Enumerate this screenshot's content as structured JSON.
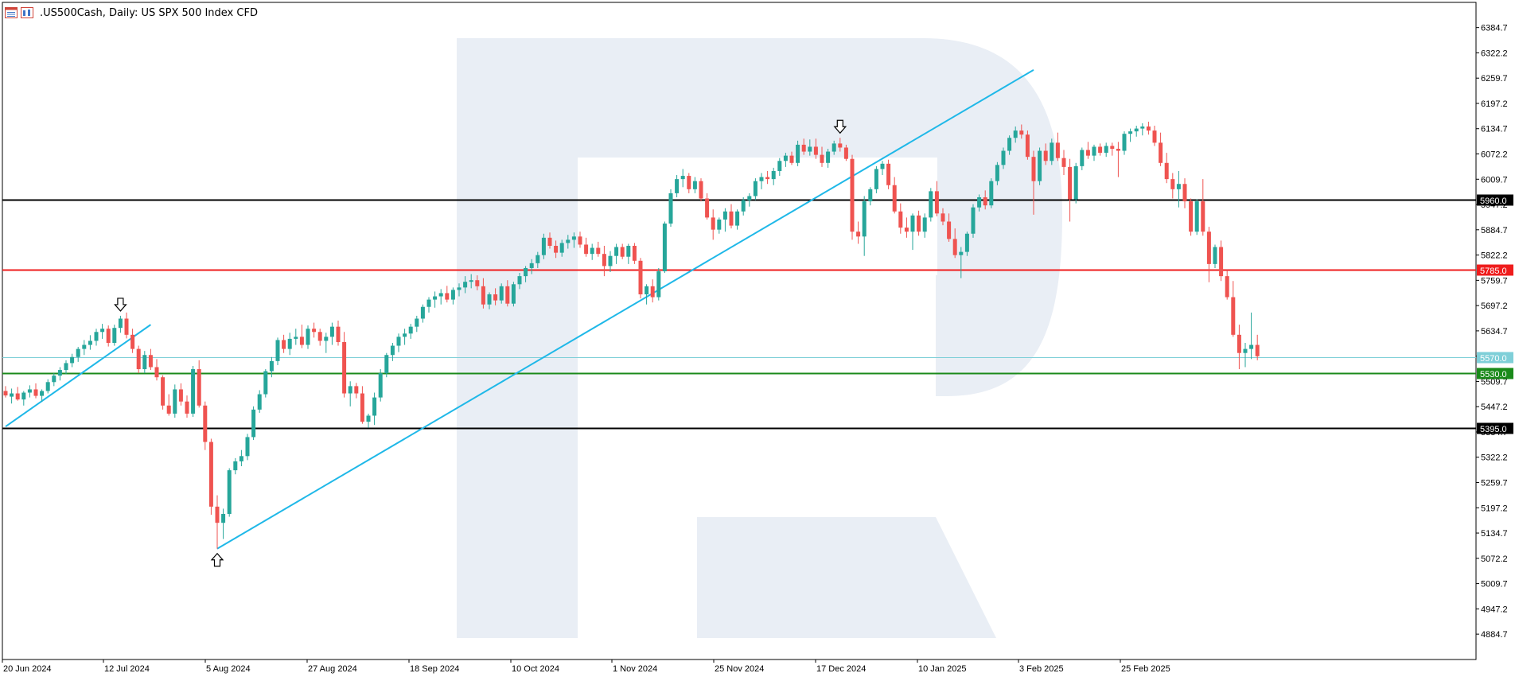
{
  "header": {
    "symbol": ".US500Cash",
    "timeframe": "Daily",
    "description": "US SPX 500 Index CFD",
    "title": ".US500Cash, Daily:  US SPX 500 Index CFD"
  },
  "colors": {
    "bull": "#26a69a",
    "bear": "#ef5350",
    "trendline": "#1fb8e8",
    "resistance_red": "#ef1c1c",
    "support_green": "#1a8a1a",
    "current_price": "#7fcfd8",
    "level_black": "#000000",
    "watermark": "#e9eef5"
  },
  "chart_data": {
    "type": "candlestick",
    "symbol": ".US500Cash",
    "timeframe": "Daily",
    "ylim": [
      4822.0,
      6447.0
    ],
    "y_ticks": [
      "6384.7",
      "6322.2",
      "6259.7",
      "6197.2",
      "6134.7",
      "6072.2",
      "6009.7",
      "5947.2",
      "5884.7",
      "5822.2",
      "5759.7",
      "5697.2",
      "5634.7",
      "5572.2",
      "5509.7",
      "5447.2",
      "5384.7",
      "5322.2",
      "5259.7",
      "5197.2",
      "5134.7",
      "5072.2",
      "5009.7",
      "4947.2",
      "4884.7"
    ],
    "x_labels": [
      "20 Jun 2024",
      "12 Jul 2024",
      "5 Aug 2024",
      "27 Aug 2024",
      "18 Sep 2024",
      "10 Oct 2024",
      "1 Nov 2024",
      "25 Nov 2024",
      "17 Dec 2024",
      "10 Jan 2025",
      "3 Feb 2025",
      "25 Feb 2025"
    ],
    "horizontal_levels": [
      {
        "value": 5960.0,
        "label": "5960.0",
        "color": "#000000"
      },
      {
        "value": 5785.0,
        "label": "5785.0",
        "color": "#ef1c1c"
      },
      {
        "value": 5570.0,
        "label": "5570.0",
        "color": "#7fcfd8"
      },
      {
        "value": 5530.0,
        "label": "5530.0",
        "color": "#1a8a1a"
      },
      {
        "value": 5395.0,
        "label": "5395.0",
        "color": "#000000"
      }
    ],
    "trendlines": [
      {
        "from": {
          "bar": 0,
          "price": 5398.0
        },
        "to": {
          "bar": 24,
          "price": 5650.0
        }
      },
      {
        "from": {
          "bar": 35,
          "price": 5096.0
        },
        "to": {
          "bar": 170,
          "price": 6280.0
        }
      }
    ],
    "arrows": [
      {
        "bar": 19,
        "direction": "down"
      },
      {
        "bar": 35,
        "direction": "up"
      },
      {
        "bar": 138,
        "direction": "down"
      }
    ],
    "candles": [
      [
        5486,
        5498,
        5470,
        5475
      ],
      [
        5472,
        5492,
        5455,
        5480
      ],
      [
        5480,
        5496,
        5462,
        5465
      ],
      [
        5465,
        5486,
        5450,
        5482
      ],
      [
        5482,
        5500,
        5470,
        5490
      ],
      [
        5490,
        5505,
        5468,
        5474
      ],
      [
        5474,
        5490,
        5460,
        5486
      ],
      [
        5486,
        5515,
        5480,
        5508
      ],
      [
        5508,
        5530,
        5498,
        5524
      ],
      [
        5524,
        5545,
        5512,
        5538
      ],
      [
        5538,
        5562,
        5528,
        5555
      ],
      [
        5555,
        5578,
        5545,
        5570
      ],
      [
        5570,
        5595,
        5558,
        5590
      ],
      [
        5590,
        5612,
        5575,
        5600
      ],
      [
        5600,
        5624,
        5588,
        5610
      ],
      [
        5610,
        5640,
        5598,
        5632
      ],
      [
        5632,
        5652,
        5615,
        5640
      ],
      [
        5640,
        5648,
        5596,
        5605
      ],
      [
        5605,
        5650,
        5598,
        5642
      ],
      [
        5642,
        5672,
        5630,
        5665
      ],
      [
        5665,
        5680,
        5616,
        5625
      ],
      [
        5625,
        5640,
        5580,
        5590
      ],
      [
        5590,
        5598,
        5530,
        5540
      ],
      [
        5540,
        5585,
        5530,
        5575
      ],
      [
        5575,
        5590,
        5538,
        5545
      ],
      [
        5545,
        5565,
        5512,
        5520
      ],
      [
        5520,
        5525,
        5440,
        5450
      ],
      [
        5450,
        5478,
        5425,
        5430
      ],
      [
        5430,
        5502,
        5420,
        5490
      ],
      [
        5490,
        5505,
        5450,
        5460
      ],
      [
        5460,
        5475,
        5420,
        5430
      ],
      [
        5430,
        5548,
        5422,
        5540
      ],
      [
        5540,
        5562,
        5445,
        5450
      ],
      [
        5450,
        5460,
        5340,
        5360
      ],
      [
        5360,
        5368,
        5180,
        5200
      ],
      [
        5200,
        5228,
        5096,
        5160
      ],
      [
        5160,
        5195,
        5120,
        5182
      ],
      [
        5182,
        5295,
        5175,
        5290
      ],
      [
        5290,
        5320,
        5280,
        5312
      ],
      [
        5312,
        5340,
        5300,
        5325
      ],
      [
        5325,
        5380,
        5315,
        5372
      ],
      [
        5372,
        5448,
        5365,
        5440
      ],
      [
        5440,
        5488,
        5432,
        5478
      ],
      [
        5478,
        5540,
        5470,
        5535
      ],
      [
        5535,
        5570,
        5520,
        5560
      ],
      [
        5560,
        5618,
        5550,
        5612
      ],
      [
        5612,
        5625,
        5580,
        5590
      ],
      [
        5590,
        5630,
        5575,
        5615
      ],
      [
        5615,
        5640,
        5600,
        5620
      ],
      [
        5620,
        5650,
        5592,
        5600
      ],
      [
        5600,
        5648,
        5590,
        5640
      ],
      [
        5640,
        5655,
        5618,
        5632
      ],
      [
        5632,
        5640,
        5598,
        5610
      ],
      [
        5610,
        5630,
        5580,
        5620
      ],
      [
        5620,
        5655,
        5600,
        5645
      ],
      [
        5645,
        5660,
        5598,
        5607
      ],
      [
        5607,
        5632,
        5470,
        5480
      ],
      [
        5480,
        5510,
        5448,
        5498
      ],
      [
        5498,
        5506,
        5468,
        5480
      ],
      [
        5480,
        5498,
        5405,
        5410
      ],
      [
        5410,
        5430,
        5395,
        5425
      ],
      [
        5425,
        5482,
        5402,
        5470
      ],
      [
        5470,
        5540,
        5460,
        5530
      ],
      [
        5530,
        5580,
        5520,
        5575
      ],
      [
        5575,
        5605,
        5560,
        5598
      ],
      [
        5598,
        5628,
        5582,
        5620
      ],
      [
        5620,
        5640,
        5600,
        5628
      ],
      [
        5628,
        5652,
        5615,
        5645
      ],
      [
        5645,
        5672,
        5632,
        5665
      ],
      [
        5665,
        5700,
        5655,
        5694
      ],
      [
        5694,
        5718,
        5680,
        5712
      ],
      [
        5712,
        5732,
        5692,
        5720
      ],
      [
        5720,
        5738,
        5700,
        5728
      ],
      [
        5728,
        5746,
        5705,
        5712
      ],
      [
        5712,
        5742,
        5700,
        5736
      ],
      [
        5736,
        5752,
        5720,
        5742
      ],
      [
        5742,
        5770,
        5728,
        5756
      ],
      [
        5756,
        5775,
        5740,
        5760
      ],
      [
        5760,
        5772,
        5735,
        5745
      ],
      [
        5745,
        5765,
        5690,
        5700
      ],
      [
        5700,
        5730,
        5688,
        5725
      ],
      [
        5725,
        5740,
        5698,
        5710
      ],
      [
        5710,
        5752,
        5702,
        5745
      ],
      [
        5745,
        5760,
        5695,
        5702
      ],
      [
        5702,
        5756,
        5695,
        5750
      ],
      [
        5750,
        5778,
        5738,
        5770
      ],
      [
        5770,
        5795,
        5755,
        5790
      ],
      [
        5790,
        5812,
        5775,
        5802
      ],
      [
        5802,
        5830,
        5790,
        5822
      ],
      [
        5822,
        5875,
        5812,
        5865
      ],
      [
        5865,
        5878,
        5838,
        5845
      ],
      [
        5845,
        5858,
        5815,
        5828
      ],
      [
        5828,
        5860,
        5818,
        5852
      ],
      [
        5852,
        5872,
        5838,
        5860
      ],
      [
        5860,
        5878,
        5840,
        5868
      ],
      [
        5868,
        5880,
        5840,
        5848
      ],
      [
        5848,
        5865,
        5818,
        5825
      ],
      [
        5825,
        5850,
        5810,
        5840
      ],
      [
        5840,
        5855,
        5818,
        5825
      ],
      [
        5825,
        5845,
        5770,
        5795
      ],
      [
        5795,
        5832,
        5780,
        5820
      ],
      [
        5820,
        5850,
        5800,
        5842
      ],
      [
        5842,
        5850,
        5812,
        5818
      ],
      [
        5818,
        5850,
        5800,
        5845
      ],
      [
        5845,
        5852,
        5800,
        5808
      ],
      [
        5808,
        5815,
        5715,
        5725
      ],
      [
        5725,
        5750,
        5700,
        5745
      ],
      [
        5745,
        5762,
        5705,
        5718
      ],
      [
        5718,
        5790,
        5710,
        5782
      ],
      [
        5782,
        5905,
        5778,
        5900
      ],
      [
        5900,
        5985,
        5892,
        5975
      ],
      [
        5975,
        6020,
        5965,
        6010
      ],
      [
        6010,
        6035,
        5990,
        6018
      ],
      [
        6018,
        6025,
        5975,
        5985
      ],
      [
        5985,
        6015,
        5975,
        6005
      ],
      [
        6005,
        6012,
        5955,
        5962
      ],
      [
        5962,
        5975,
        5910,
        5915
      ],
      [
        5915,
        5935,
        5860,
        5885
      ],
      [
        5885,
        5915,
        5875,
        5910
      ],
      [
        5910,
        5938,
        5880,
        5930
      ],
      [
        5930,
        5948,
        5888,
        5895
      ],
      [
        5895,
        5935,
        5885,
        5930
      ],
      [
        5930,
        5965,
        5920,
        5958
      ],
      [
        5958,
        5975,
        5942,
        5968
      ],
      [
        5968,
        6012,
        5958,
        6005
      ],
      [
        6005,
        6025,
        5985,
        6015
      ],
      [
        6015,
        6030,
        5998,
        6010
      ],
      [
        6010,
        6038,
        5995,
        6030
      ],
      [
        6030,
        6062,
        6018,
        6055
      ],
      [
        6055,
        6075,
        6040,
        6068
      ],
      [
        6068,
        6078,
        6045,
        6050
      ],
      [
        6050,
        6105,
        6042,
        6095
      ],
      [
        6095,
        6110,
        6070,
        6078
      ],
      [
        6078,
        6108,
        6068,
        6090
      ],
      [
        6090,
        6110,
        6060,
        6070
      ],
      [
        6070,
        6090,
        6040,
        6050
      ],
      [
        6050,
        6085,
        6038,
        6078
      ],
      [
        6078,
        6105,
        6070,
        6098
      ],
      [
        6098,
        6112,
        6078,
        6088
      ],
      [
        6088,
        6095,
        6055,
        6060
      ],
      [
        6060,
        6070,
        5860,
        5880
      ],
      [
        5880,
        5905,
        5850,
        5868
      ],
      [
        5868,
        5968,
        5820,
        5955
      ],
      [
        5955,
        5990,
        5945,
        5985
      ],
      [
        5985,
        6042,
        5975,
        6035
      ],
      [
        6035,
        6055,
        6020,
        6048
      ],
      [
        6048,
        6058,
        5985,
        5995
      ],
      [
        5995,
        6015,
        5925,
        5930
      ],
      [
        5930,
        5950,
        5875,
        5890
      ],
      [
        5890,
        5915,
        5865,
        5880
      ],
      [
        5880,
        5925,
        5835,
        5920
      ],
      [
        5920,
        5932,
        5870,
        5880
      ],
      [
        5880,
        5925,
        5865,
        5915
      ],
      [
        5915,
        5988,
        5905,
        5980
      ],
      [
        5980,
        6005,
        5918,
        5925
      ],
      [
        5925,
        5938,
        5896,
        5905
      ],
      [
        5905,
        5925,
        5855,
        5862
      ],
      [
        5862,
        5888,
        5815,
        5822
      ],
      [
        5822,
        5842,
        5765,
        5830
      ],
      [
        5830,
        5880,
        5820,
        5875
      ],
      [
        5875,
        5948,
        5865,
        5940
      ],
      [
        5940,
        5972,
        5930,
        5965
      ],
      [
        5965,
        5982,
        5935,
        5945
      ],
      [
        5945,
        6012,
        5938,
        6005
      ],
      [
        6005,
        6052,
        5995,
        6045
      ],
      [
        6045,
        6088,
        6035,
        6080
      ],
      [
        6080,
        6118,
        6070,
        6112
      ],
      [
        6112,
        6140,
        6100,
        6130
      ],
      [
        6130,
        6145,
        6110,
        6120
      ],
      [
        6120,
        6130,
        6058,
        6065
      ],
      [
        6065,
        6080,
        5922,
        6005
      ],
      [
        6005,
        6088,
        5995,
        6080
      ],
      [
        6080,
        6098,
        6045,
        6055
      ],
      [
        6055,
        6110,
        6045,
        6100
      ],
      [
        6100,
        6125,
        6055,
        6062
      ],
      [
        6062,
        6082,
        6020,
        6040
      ],
      [
        6040,
        6060,
        5905,
        5960
      ],
      [
        5960,
        6050,
        5950,
        6042
      ],
      [
        6042,
        6088,
        6032,
        6082
      ],
      [
        6082,
        6102,
        6060,
        6068
      ],
      [
        6068,
        6095,
        6055,
        6090
      ],
      [
        6090,
        6098,
        6068,
        6075
      ],
      [
        6075,
        6100,
        6065,
        6092
      ],
      [
        6092,
        6100,
        6068,
        6085
      ],
      [
        6085,
        6102,
        6015,
        6080
      ],
      [
        6080,
        6128,
        6070,
        6122
      ],
      [
        6122,
        6135,
        6102,
        6128
      ],
      [
        6128,
        6142,
        6115,
        6135
      ],
      [
        6135,
        6148,
        6118,
        6140
      ],
      [
        6140,
        6152,
        6120,
        6130
      ],
      [
        6130,
        6142,
        6092,
        6100
      ],
      [
        6100,
        6125,
        6042,
        6050
      ],
      [
        6050,
        6075,
        6000,
        6010
      ],
      [
        6010,
        6025,
        5962,
        5985
      ],
      [
        5985,
        6030,
        5940,
        5998
      ],
      [
        5998,
        6012,
        5938,
        5955
      ],
      [
        5955,
        5962,
        5870,
        5880
      ],
      [
        5880,
        5960,
        5872,
        5955
      ],
      [
        5955,
        6010,
        5870,
        5880
      ],
      [
        5880,
        5892,
        5755,
        5800
      ],
      [
        5800,
        5848,
        5790,
        5842
      ],
      [
        5842,
        5858,
        5758,
        5770
      ],
      [
        5770,
        5785,
        5712,
        5718
      ],
      [
        5718,
        5758,
        5620,
        5625
      ],
      [
        5625,
        5650,
        5540,
        5580
      ],
      [
        5580,
        5605,
        5545,
        5590
      ],
      [
        5590,
        5680,
        5565,
        5600
      ],
      [
        5600,
        5625,
        5562,
        5572
      ]
    ]
  },
  "axis": {
    "price_labels": [
      "6384.7",
      "6322.2",
      "6259.7",
      "6197.2",
      "6134.7",
      "6072.2",
      "6009.7",
      "5947.2",
      "5884.7",
      "5822.2",
      "5759.7",
      "5697.2",
      "5634.7",
      "5572.2",
      "5509.7",
      "5447.2",
      "5384.7",
      "5322.2",
      "5259.7",
      "5197.2",
      "5134.7",
      "5072.2",
      "5009.7",
      "4947.2",
      "4884.7"
    ],
    "date_labels": [
      "20 Jun 2024",
      "12 Jul 2024",
      "5 Aug 2024",
      "27 Aug 2024",
      "18 Sep 2024",
      "10 Oct 2024",
      "1 Nov 2024",
      "25 Nov 2024",
      "17 Dec 2024",
      "10 Jan 2025",
      "3 Feb 2025",
      "25 Feb 2025"
    ]
  }
}
